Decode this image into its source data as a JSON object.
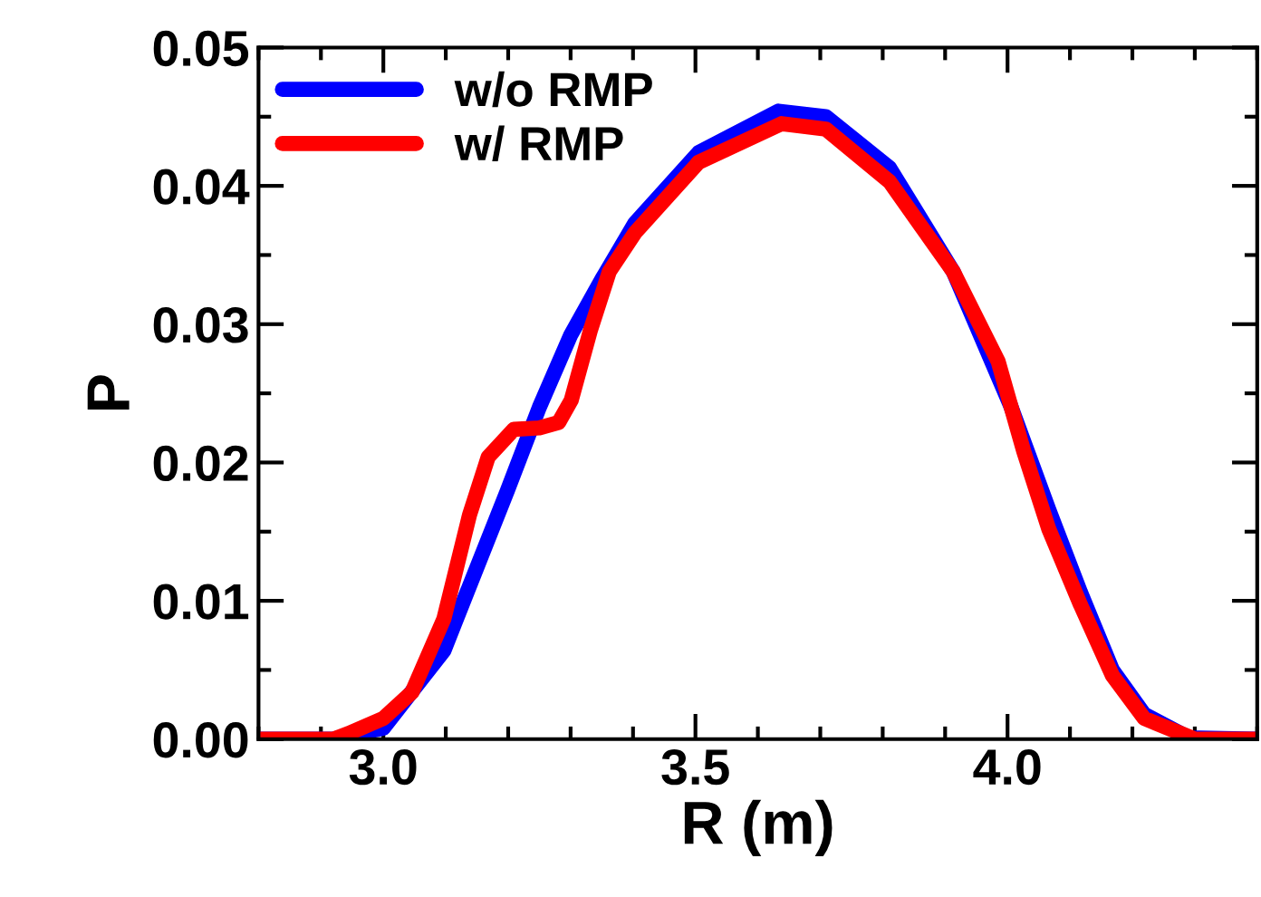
{
  "chart_data": {
    "type": "line",
    "xlabel": "R (m)",
    "ylabel": "P",
    "xlim": [
      2.8,
      4.4
    ],
    "xticks": [
      {
        "value": 3.0,
        "label": "3.0"
      },
      3.5,
      {
        "value": 4.0,
        "label": "4.0"
      }
    ],
    "ylim": [
      0,
      0.05
    ],
    "yticks": [
      {
        "value": 0,
        "label": "0.00"
      },
      {
        "value": 0.01,
        "label": "0.01"
      },
      {
        "value": 0.02,
        "label": "0.02"
      },
      {
        "value": 0.03,
        "label": "0.03"
      },
      {
        "value": 0.04,
        "label": "0.04"
      },
      {
        "value": 0.05,
        "label": "0.05"
      }
    ],
    "grid": false,
    "legend": "top left",
    "line_style": "solid",
    "marker": "none",
    "series": [
      {
        "name": "w/o RMP",
        "color": "#0000ff",
        "x": [
          2.8,
          2.92,
          3.0,
          3.097,
          3.199,
          3.25,
          3.3,
          3.352,
          3.403,
          3.505,
          3.633,
          3.709,
          3.811,
          3.913,
          4.005,
          4.066,
          4.117,
          4.168,
          4.219,
          4.29,
          4.4
        ],
        "values": [
          0,
          0,
          0.0008,
          0.0064,
          0.018,
          0.024,
          0.0292,
          0.0334,
          0.0373,
          0.0424,
          0.0454,
          0.045,
          0.0413,
          0.0338,
          0.0241,
          0.0166,
          0.0106,
          0.005,
          0.0018,
          0.0001,
          0
        ]
      },
      {
        "name": "w/ RMP",
        "color": "#ff0000",
        "x": [
          2.8,
          2.92,
          2.944,
          3.0,
          3.046,
          3.097,
          3.138,
          3.168,
          3.209,
          3.25,
          3.281,
          3.301,
          3.332,
          3.362,
          3.403,
          3.505,
          3.638,
          3.709,
          3.811,
          3.913,
          3.985,
          4.026,
          4.066,
          4.117,
          4.168,
          4.219,
          4.3,
          4.4
        ],
        "values": [
          0,
          0,
          0.0004,
          0.0015,
          0.0034,
          0.0087,
          0.0162,
          0.0204,
          0.0224,
          0.0225,
          0.0229,
          0.0245,
          0.0296,
          0.0338,
          0.0366,
          0.0417,
          0.0445,
          0.0441,
          0.0403,
          0.0338,
          0.0273,
          0.0208,
          0.0152,
          0.0097,
          0.0046,
          0.0015,
          0,
          0
        ]
      }
    ]
  }
}
